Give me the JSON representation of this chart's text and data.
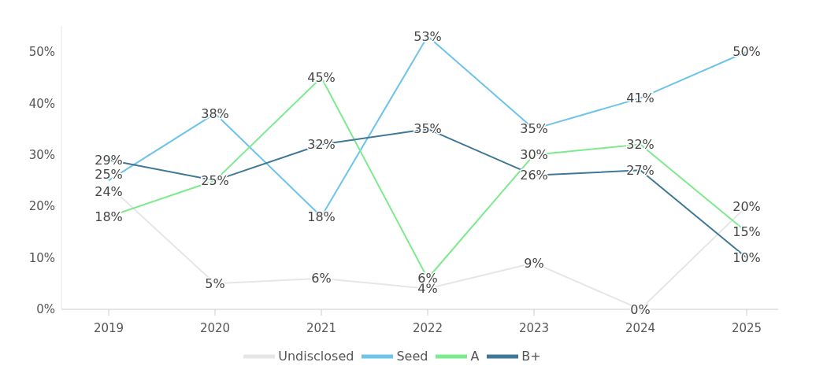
{
  "chart_data": {
    "type": "line",
    "categories": [
      "2019",
      "2020",
      "2021",
      "2022",
      "2023",
      "2024",
      "2025"
    ],
    "series": [
      {
        "name": "Undisclosed",
        "color": "#e6e6e6",
        "values": [
          24,
          5,
          6,
          4,
          9,
          0,
          20
        ],
        "value_labels": [
          "24%",
          "5%",
          "6%",
          "4%",
          "9%",
          "0%",
          "20%"
        ]
      },
      {
        "name": "Seed",
        "color": "#6ec3ea",
        "values": [
          25,
          38,
          18,
          53,
          35,
          41,
          50
        ],
        "value_labels": [
          "25%",
          "38%",
          "18%",
          "53%",
          "35%",
          "41%",
          "50%"
        ]
      },
      {
        "name": "A",
        "color": "#7eea8e",
        "values": [
          18,
          25,
          45,
          6,
          30,
          32,
          15
        ],
        "value_labels": [
          "18%",
          null,
          "45%",
          "6%",
          "30%",
          "32%",
          "15%"
        ]
      },
      {
        "name": "B+",
        "color": "#3f7897",
        "values": [
          29,
          25,
          32,
          35,
          26,
          27,
          10
        ],
        "value_labels": [
          "29%",
          "25%",
          "32%",
          "35%",
          "26%",
          "27%",
          "10%"
        ]
      }
    ],
    "ylim": [
      0,
      55
    ],
    "yticks": [
      {
        "value": 0,
        "label": "0%"
      },
      {
        "value": 10,
        "label": "10%"
      },
      {
        "value": 20,
        "label": "20%"
      },
      {
        "value": 30,
        "label": "30%"
      },
      {
        "value": 40,
        "label": "40%"
      },
      {
        "value": 50,
        "label": "50%"
      }
    ],
    "grid": false,
    "legend": "bottom",
    "marker": "none",
    "line_style": "solid"
  }
}
